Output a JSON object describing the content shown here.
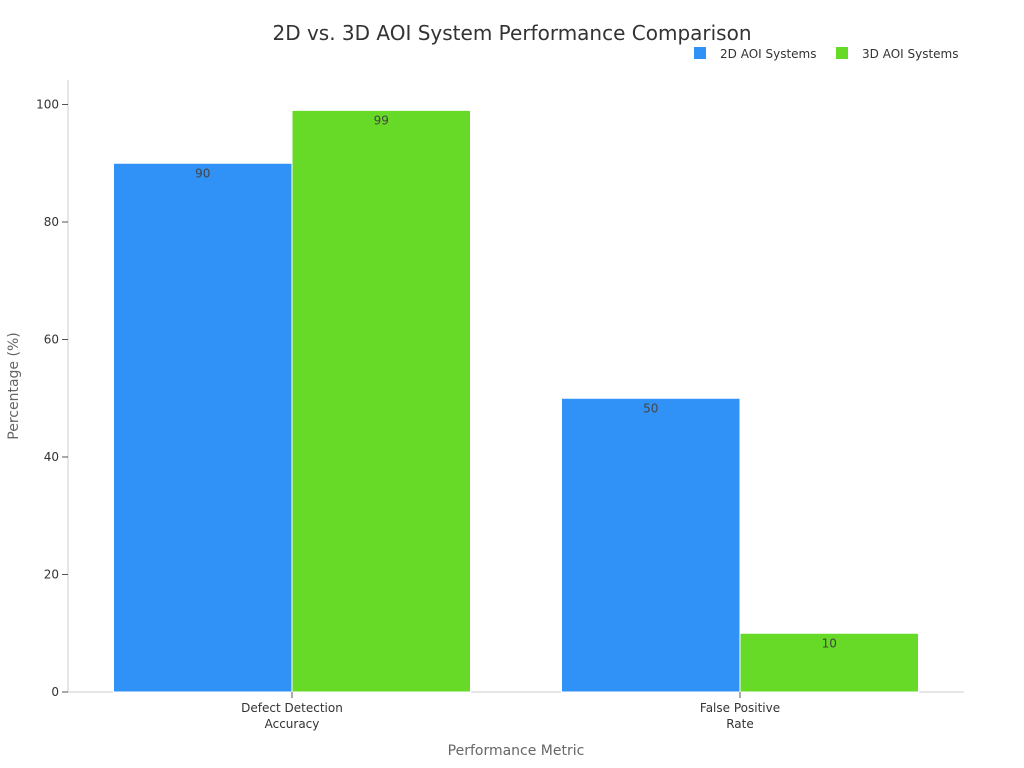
{
  "chart_data": {
    "type": "bar",
    "title": "2D vs. 3D AOI System Performance Comparison",
    "xlabel": "Performance Metric",
    "ylabel": "Percentage (%)",
    "categories": [
      [
        "Defect Detection",
        "Accuracy"
      ],
      [
        "False Positive",
        "Rate"
      ]
    ],
    "series": [
      {
        "name": "2D AOI Systems",
        "color": "#3092F7",
        "values": [
          90,
          50
        ]
      },
      {
        "name": "3D AOI Systems",
        "color": "#66DA26",
        "values": [
          99,
          10
        ]
      }
    ],
    "ylim": [
      0,
      100
    ],
    "yticks": [
      0,
      20,
      40,
      60,
      80,
      100
    ],
    "grid": false,
    "legend_position": "top-right",
    "data_labels": true
  }
}
